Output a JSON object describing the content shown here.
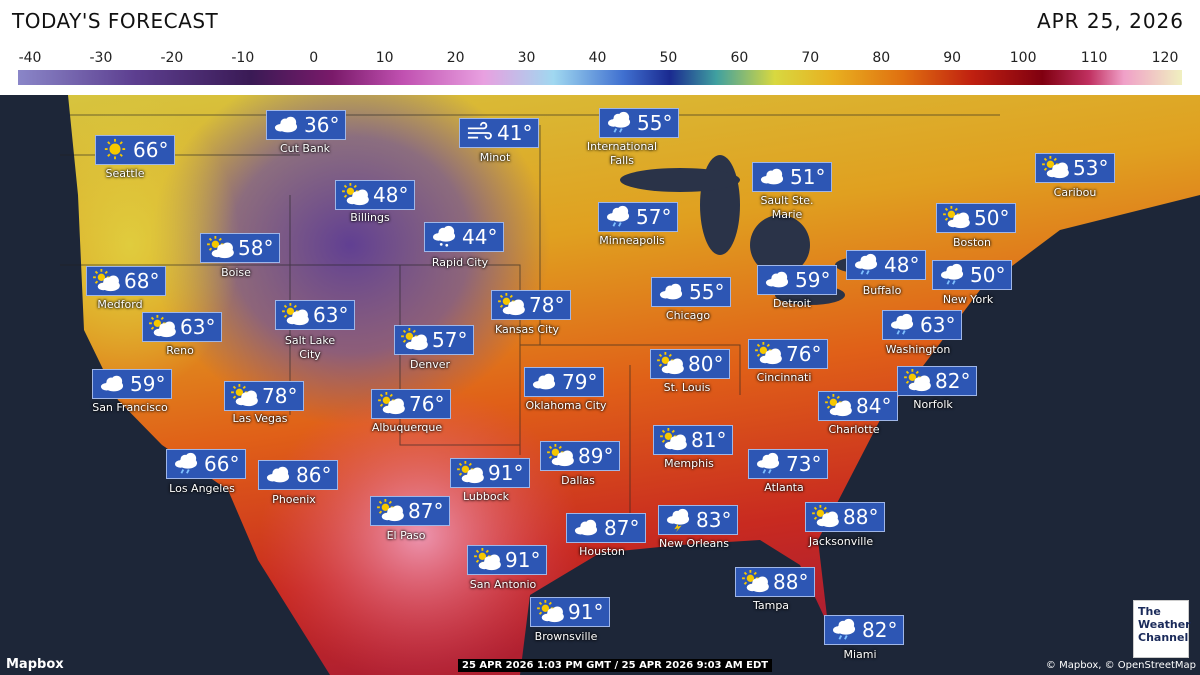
{
  "header": {
    "title": "TODAY'S FORECAST",
    "date": "APR 25, 2026"
  },
  "color_scale": {
    "ticks": [
      -40,
      -30,
      -20,
      -10,
      0,
      10,
      20,
      30,
      40,
      50,
      60,
      70,
      80,
      90,
      100,
      110,
      120
    ]
  },
  "cities": [
    {
      "name": "Seattle",
      "temp": "66°"
    },
    {
      "name": "Cut Bank",
      "temp": "36°"
    },
    {
      "name": "Minot",
      "temp": "41°"
    },
    {
      "name": "International Falls",
      "temp": "55°"
    },
    {
      "name": "Caribou",
      "temp": "53°"
    },
    {
      "name": "Billings",
      "temp": "48°"
    },
    {
      "name": "Sault Ste. Marie",
      "temp": "51°"
    },
    {
      "name": "Minneapolis",
      "temp": "57°"
    },
    {
      "name": "Boston",
      "temp": "50°"
    },
    {
      "name": "Rapid City",
      "temp": "44°"
    },
    {
      "name": "Boise",
      "temp": "58°"
    },
    {
      "name": "Medford",
      "temp": "68°"
    },
    {
      "name": "Buffalo",
      "temp": "48°"
    },
    {
      "name": "New York",
      "temp": "50°"
    },
    {
      "name": "Detroit",
      "temp": "59°"
    },
    {
      "name": "Chicago",
      "temp": "55°"
    },
    {
      "name": "Kansas City",
      "temp": "78°"
    },
    {
      "name": "Reno",
      "temp": "63°"
    },
    {
      "name": "Salt Lake City",
      "temp": "63°"
    },
    {
      "name": "Washington",
      "temp": "63°"
    },
    {
      "name": "Denver",
      "temp": "57°"
    },
    {
      "name": "Cincinnati",
      "temp": "76°"
    },
    {
      "name": "St. Louis",
      "temp": "80°"
    },
    {
      "name": "San Francisco",
      "temp": "59°"
    },
    {
      "name": "Norfolk",
      "temp": "82°"
    },
    {
      "name": "Oklahoma City",
      "temp": "79°"
    },
    {
      "name": "Las Vegas",
      "temp": "78°"
    },
    {
      "name": "Albuquerque",
      "temp": "76°"
    },
    {
      "name": "Charlotte",
      "temp": "84°"
    },
    {
      "name": "Memphis",
      "temp": "81°"
    },
    {
      "name": "Dallas",
      "temp": "89°"
    },
    {
      "name": "Atlanta",
      "temp": "73°"
    },
    {
      "name": "Los Angeles",
      "temp": "66°"
    },
    {
      "name": "Phoenix",
      "temp": "86°"
    },
    {
      "name": "Lubbock",
      "temp": "91°"
    },
    {
      "name": "El Paso",
      "temp": "87°"
    },
    {
      "name": "Jacksonville",
      "temp": "88°"
    },
    {
      "name": "Houston",
      "temp": "87°"
    },
    {
      "name": "New Orleans",
      "temp": "83°"
    },
    {
      "name": "San Antonio",
      "temp": "91°"
    },
    {
      "name": "Tampa",
      "temp": "88°"
    },
    {
      "name": "Brownsville",
      "temp": "91°"
    },
    {
      "name": "Miami",
      "temp": "82°"
    }
  ],
  "footer": {
    "timestamp": "25 APR 2026 1:03 PM GMT / 25 APR 2026 9:03 AM EDT",
    "attribution_left": "Mapbox",
    "attribution_right": "© Mapbox, © OpenStreetMap",
    "logo": "The Weather Channel"
  }
}
